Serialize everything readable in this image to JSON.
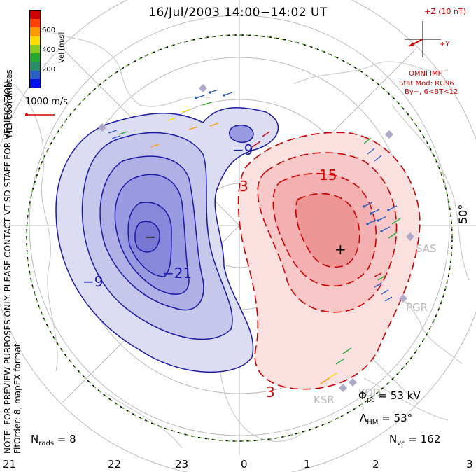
{
  "title": "16/Jul/2003  14:00−14:02  UT",
  "imf": {
    "scale_label": "+Z (10 nT)",
    "y_label": "+Y",
    "source": "OMNI IMF",
    "model": "Stat Mod: RG96",
    "condition": "By−, 6<BT<12"
  },
  "colorbar": {
    "label": "Vel [m/s]",
    "ticks": [
      "600",
      "400",
      "200"
    ],
    "colors": [
      "#d00000",
      "#ff4000",
      "#ff9900",
      "#ffdd00",
      "#88cc22",
      "#22aa33",
      "#2b8c6a",
      "#2a5fc4",
      "#0011ee"
    ]
  },
  "coord_label": "MLT coordinates",
  "reference_vector": "1000 m/s",
  "disclaimer": "NOTE: FOR PREVIEW PURPOSES ONLY. PLEASE CONTACT VT-SD STAFF FOR VERIFICATION.",
  "fitorder": "FitOrder: 8, mapEX format",
  "latitude_label": "50°",
  "contour_labels": {
    "neg": [
      "−9",
      "−9",
      "−21",
      "−"
    ],
    "pos": [
      "3",
      "15",
      "3",
      "+"
    ]
  },
  "radars": [
    "SAS",
    "PGR",
    "KOD",
    "KSR"
  ],
  "stats": {
    "phi_pc": "53 kV",
    "lambda_hm": "53°",
    "n_vc": "162",
    "n_rads": "8"
  },
  "mlt_ticks": [
    "21",
    "22",
    "23",
    "0",
    "1",
    "2",
    "3"
  ]
}
